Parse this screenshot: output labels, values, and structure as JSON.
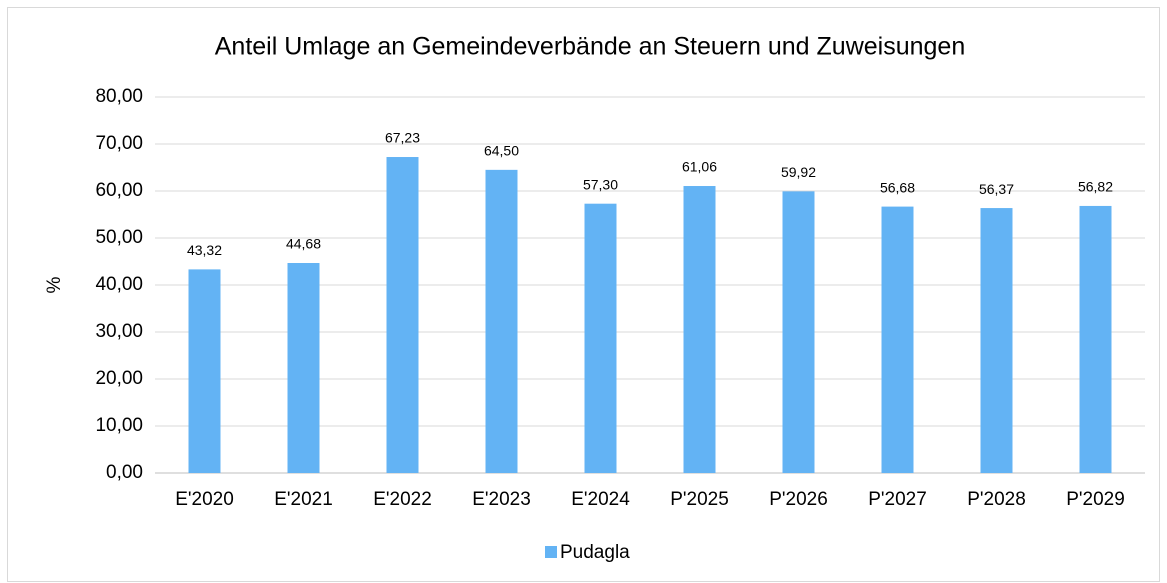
{
  "chart_data": {
    "type": "bar",
    "title": "Anteil Umlage an Gemeindeverbände an Steuern und Zuweisungen",
    "y_label": "%",
    "categories": [
      "E'2020",
      "E'2021",
      "E'2022",
      "E'2023",
      "E'2024",
      "P'2025",
      "P'2026",
      "P'2027",
      "P'2028",
      "P'2029"
    ],
    "series": [
      {
        "name": "Pudagla",
        "color": "#63b3f4",
        "values": [
          43.32,
          44.68,
          67.23,
          64.5,
          57.3,
          61.06,
          59.92,
          56.68,
          56.37,
          56.82
        ],
        "value_labels": [
          "43,32",
          "44,68",
          "67,23",
          "64,50",
          "57,30",
          "61,06",
          "59,92",
          "56,68",
          "56,37",
          "56,82"
        ]
      }
    ],
    "ylim": [
      0,
      80
    ],
    "yticks": [
      {
        "value": 0,
        "label": "0,00"
      },
      {
        "value": 10,
        "label": "10,00"
      },
      {
        "value": 20,
        "label": "20,00"
      },
      {
        "value": 30,
        "label": "30,00"
      },
      {
        "value": 40,
        "label": "40,00"
      },
      {
        "value": 50,
        "label": "50,00"
      },
      {
        "value": 60,
        "label": "60,00"
      },
      {
        "value": 70,
        "label": "70,00"
      },
      {
        "value": 80,
        "label": "80,00"
      }
    ],
    "grid": true,
    "legend": "bottom"
  }
}
